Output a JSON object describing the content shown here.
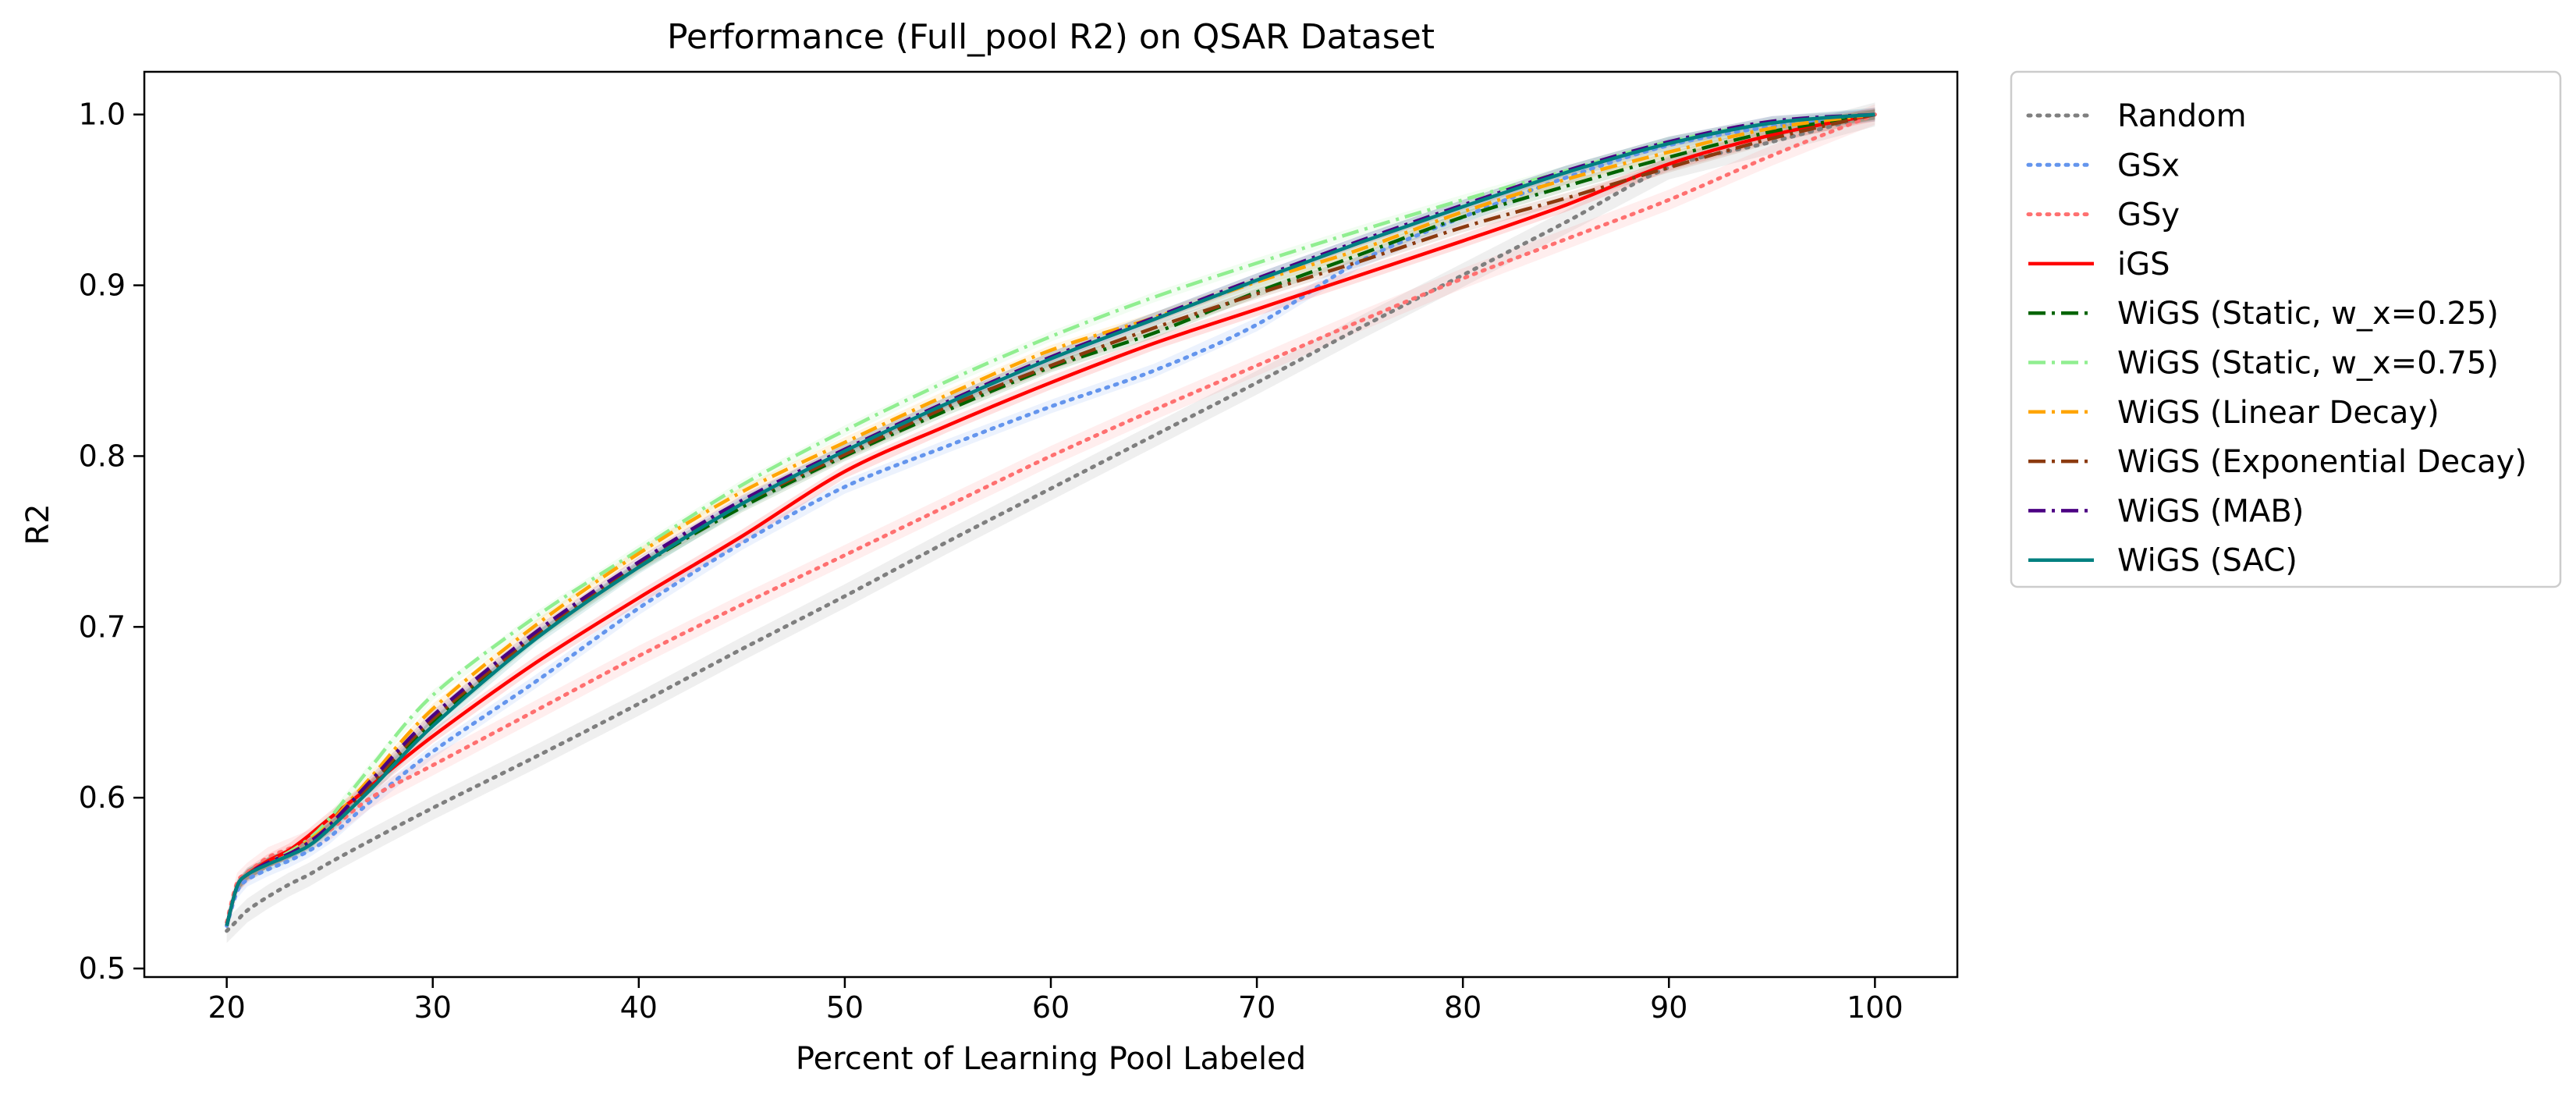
{
  "chart_data": {
    "type": "line",
    "title": "Performance (Full_pool R2) on QSAR Dataset",
    "xlabel": "Percent of Learning Pool Labeled",
    "ylabel": "R2",
    "xlim": [
      16,
      104
    ],
    "ylim": [
      0.495,
      1.025
    ],
    "xticks": [
      20,
      30,
      40,
      50,
      60,
      70,
      80,
      90,
      100
    ],
    "yticks": [
      0.5,
      0.6,
      0.7,
      0.8,
      0.9,
      1.0
    ],
    "xtick_labels": [
      "20",
      "30",
      "40",
      "50",
      "60",
      "70",
      "80",
      "90",
      "100"
    ],
    "ytick_labels": [
      "0.5",
      "0.6",
      "0.7",
      "0.8",
      "0.9",
      "1.0"
    ],
    "grid": false,
    "legend_position": "outside-right",
    "x": [
      20,
      20.5,
      21,
      22,
      23,
      24,
      25,
      27,
      30,
      35,
      40,
      45,
      50,
      55,
      60,
      65,
      70,
      75,
      80,
      85,
      90,
      95,
      100
    ],
    "series": [
      {
        "name": "Random",
        "color": "#7f7f7f",
        "dash": "dotted",
        "values": [
          0.522,
          0.528,
          0.534,
          0.542,
          0.549,
          0.555,
          0.562,
          0.575,
          0.594,
          0.624,
          0.655,
          0.687,
          0.718,
          0.75,
          0.781,
          0.812,
          0.843,
          0.875,
          0.906,
          0.937,
          0.969,
          0.984,
          1.0
        ],
        "band": 0.007
      },
      {
        "name": "GSx",
        "color": "#6495ed",
        "dash": "dotted",
        "values": [
          0.525,
          0.545,
          0.552,
          0.558,
          0.563,
          0.569,
          0.577,
          0.598,
          0.627,
          0.668,
          0.711,
          0.749,
          0.782,
          0.806,
          0.829,
          0.85,
          0.877,
          0.914,
          0.94,
          0.963,
          0.982,
          0.993,
          1.0
        ],
        "band": 0.004
      },
      {
        "name": "GSy",
        "color": "#ff7070",
        "dash": "dotted",
        "values": [
          0.527,
          0.55,
          0.556,
          0.565,
          0.57,
          0.575,
          0.581,
          0.6,
          0.619,
          0.651,
          0.683,
          0.713,
          0.742,
          0.771,
          0.8,
          0.827,
          0.853,
          0.879,
          0.904,
          0.927,
          0.95,
          0.976,
          1.0
        ],
        "band": 0.006
      },
      {
        "name": "iGS",
        "color": "#ff0000",
        "dash": "solid",
        "values": [
          0.525,
          0.548,
          0.555,
          0.563,
          0.569,
          0.578,
          0.588,
          0.607,
          0.636,
          0.679,
          0.717,
          0.753,
          0.791,
          0.818,
          0.843,
          0.866,
          0.886,
          0.906,
          0.926,
          0.947,
          0.971,
          0.988,
          1.0
        ],
        "band": 0.004
      },
      {
        "name": "WiGS (Static, w_x=0.25)",
        "color": "#006400",
        "dash": "dashdot",
        "values": [
          0.525,
          0.548,
          0.555,
          0.562,
          0.567,
          0.573,
          0.582,
          0.607,
          0.644,
          0.694,
          0.735,
          0.77,
          0.8,
          0.827,
          0.852,
          0.872,
          0.896,
          0.918,
          0.94,
          0.958,
          0.975,
          0.99,
          1.0
        ],
        "band": 0.003
      },
      {
        "name": "WiGS (Static, w_x=0.75)",
        "color": "#90ee90",
        "dash": "dashdot",
        "values": [
          0.525,
          0.548,
          0.555,
          0.562,
          0.568,
          0.576,
          0.588,
          0.618,
          0.66,
          0.706,
          0.745,
          0.783,
          0.815,
          0.844,
          0.87,
          0.893,
          0.913,
          0.932,
          0.95,
          0.967,
          0.984,
          0.995,
          1.0
        ],
        "band": 0.003
      },
      {
        "name": "WiGS (Linear Decay)",
        "color": "#ffa500",
        "dash": "dashdot",
        "values": [
          0.525,
          0.548,
          0.555,
          0.562,
          0.567,
          0.575,
          0.585,
          0.612,
          0.652,
          0.701,
          0.743,
          0.779,
          0.808,
          0.836,
          0.862,
          0.881,
          0.902,
          0.921,
          0.943,
          0.962,
          0.978,
          0.992,
          1.0
        ],
        "band": 0.003
      },
      {
        "name": "WiGS (Exponential Decay)",
        "color": "#8b3a0f",
        "dash": "dashdot",
        "values": [
          0.525,
          0.548,
          0.555,
          0.562,
          0.567,
          0.573,
          0.583,
          0.608,
          0.646,
          0.695,
          0.736,
          0.772,
          0.801,
          0.829,
          0.853,
          0.875,
          0.895,
          0.914,
          0.934,
          0.951,
          0.969,
          0.986,
          1.0
        ],
        "band": 0.003
      },
      {
        "name": "WiGS (MAB)",
        "color": "#4b0082",
        "dash": "dashdot",
        "values": [
          0.525,
          0.548,
          0.555,
          0.562,
          0.567,
          0.574,
          0.584,
          0.61,
          0.648,
          0.697,
          0.738,
          0.774,
          0.804,
          0.832,
          0.858,
          0.881,
          0.904,
          0.926,
          0.947,
          0.967,
          0.984,
          0.996,
          1.0
        ],
        "band": 0.003
      },
      {
        "name": "WiGS (SAC)",
        "color": "#008080",
        "dash": "solid",
        "values": [
          0.525,
          0.548,
          0.555,
          0.561,
          0.566,
          0.572,
          0.582,
          0.605,
          0.642,
          0.693,
          0.735,
          0.772,
          0.803,
          0.831,
          0.857,
          0.88,
          0.903,
          0.925,
          0.946,
          0.966,
          0.983,
          0.995,
          1.0
        ],
        "band": 0.004
      }
    ]
  }
}
